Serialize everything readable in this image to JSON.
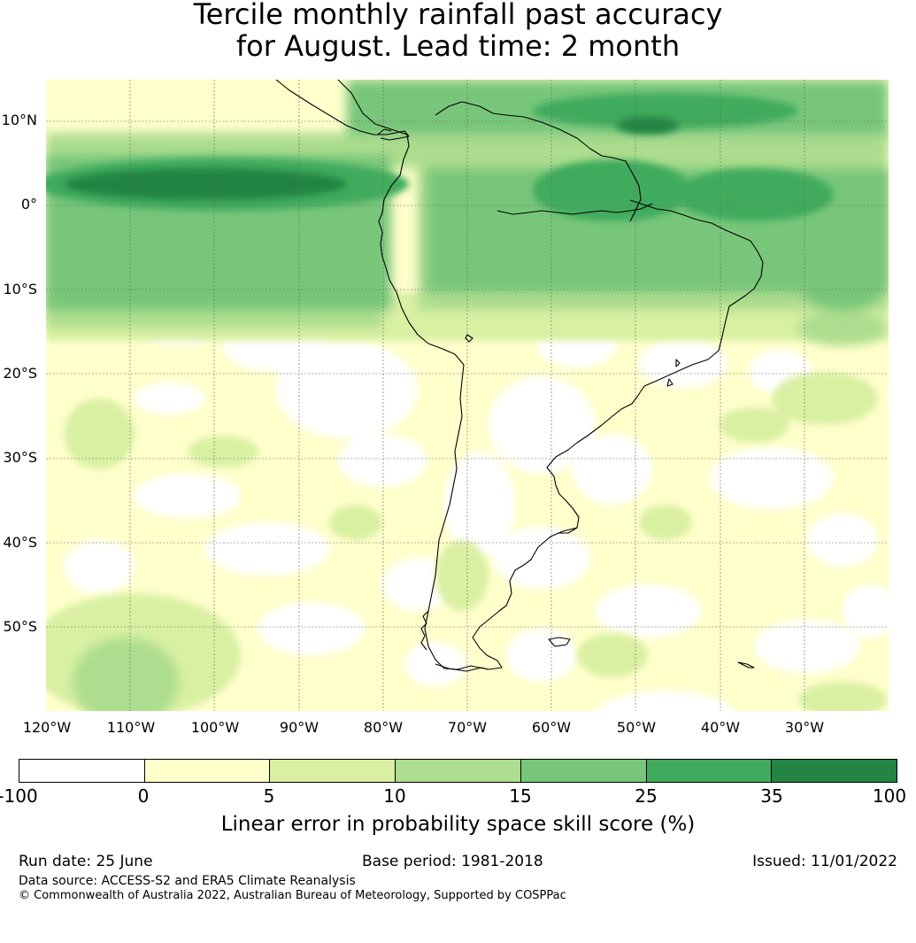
{
  "title": {
    "line1": "Tercile monthly rainfall past accuracy",
    "line2": "for August. Lead time: 2 month"
  },
  "map": {
    "lat_labels": [
      "10°N",
      "0°",
      "10°S",
      "20°S",
      "30°S",
      "40°S",
      "50°S"
    ],
    "lon_labels": [
      "120°W",
      "110°W",
      "100°W",
      "90°W",
      "80°W",
      "70°W",
      "60°W",
      "50°W",
      "40°W",
      "30°W"
    ],
    "lon_range": [
      -125,
      -25
    ],
    "lat_range": [
      -60,
      15
    ]
  },
  "colorbar": {
    "ticks": [
      "-100",
      "0",
      "5",
      "10",
      "15",
      "25",
      "35",
      "100"
    ],
    "colors": [
      "#ffffff",
      "#ffffcc",
      "#d9f0a3",
      "#addd8e",
      "#78c679",
      "#41ab5d",
      "#238443"
    ],
    "label": "Linear error in probability space skill score (%)"
  },
  "footer": {
    "run_date": "Run date: 25 June",
    "base_period": "Base period: 1981-2018",
    "issued": "Issued: 11/01/2022",
    "data_source": "Data source: ACCESS-S2 and ERA5 Climate Reanalysis",
    "copyright": "© Commonwealth of Australia 2022, Australian Bureau of Meteorology, Supported by COSPPac"
  }
}
